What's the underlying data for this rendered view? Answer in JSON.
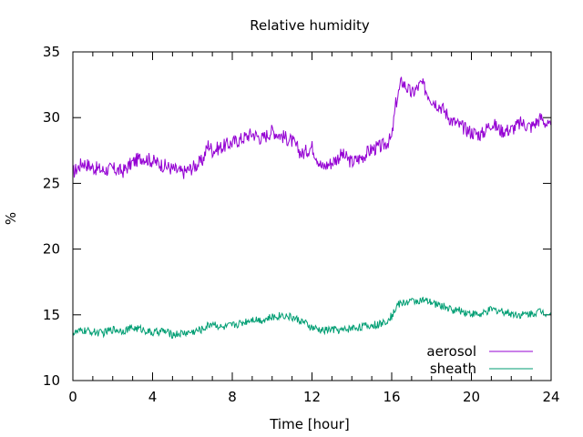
{
  "chart_data": {
    "type": "line",
    "title": "Relative humidity",
    "xlabel": "Time [hour]",
    "ylabel": "%",
    "xlim": [
      0,
      24
    ],
    "ylim": [
      10,
      35
    ],
    "x_ticks": [
      0,
      4,
      8,
      12,
      16,
      20,
      24
    ],
    "y_ticks": [
      10,
      15,
      20,
      25,
      30,
      35
    ],
    "grid": false,
    "legend_position": "bottom-right",
    "series": [
      {
        "name": "aerosol",
        "color": "#9400d3",
        "x": [
          0,
          0.5,
          1,
          1.5,
          2,
          2.5,
          3,
          3.5,
          4,
          4.5,
          5,
          5.5,
          6,
          6.5,
          6.8,
          7,
          7.5,
          8,
          8.5,
          9,
          9.5,
          10,
          10.5,
          11,
          11.5,
          12,
          12.5,
          13,
          13.5,
          14,
          14.5,
          15,
          15.5,
          16,
          16.2,
          16.5,
          17,
          17.5,
          18,
          18.5,
          19,
          19.5,
          20,
          20.5,
          21,
          21.5,
          22,
          22.5,
          23,
          23.5,
          24
        ],
        "values": [
          25.8,
          26.6,
          26.2,
          26.0,
          26.1,
          25.9,
          26.6,
          27.0,
          26.7,
          26.4,
          26.1,
          25.8,
          26.2,
          26.7,
          28.0,
          27.5,
          27.8,
          28.1,
          28.4,
          28.8,
          28.4,
          29.0,
          28.6,
          28.2,
          27.2,
          27.8,
          26.2,
          26.6,
          27.2,
          26.6,
          27.0,
          27.6,
          27.8,
          28.4,
          31.0,
          32.8,
          31.8,
          32.6,
          31.4,
          30.8,
          29.8,
          29.3,
          28.9,
          28.7,
          29.6,
          29.0,
          29.1,
          29.6,
          29.3,
          30.0,
          29.1
        ]
      },
      {
        "name": "sheath",
        "color": "#009e73",
        "x": [
          0,
          0.5,
          1,
          1.5,
          2,
          2.5,
          3,
          3.5,
          4,
          4.5,
          5,
          5.5,
          6,
          6.5,
          7,
          7.5,
          8,
          8.5,
          9,
          9.5,
          10,
          10.5,
          11,
          11.5,
          12,
          12.5,
          13,
          13.5,
          14,
          14.5,
          15,
          15.5,
          16,
          16.3,
          16.8,
          17.5,
          18,
          18.5,
          19,
          19.5,
          20,
          20.5,
          21,
          21.5,
          22,
          22.5,
          23,
          23.5,
          24
        ],
        "values": [
          13.6,
          13.8,
          13.7,
          13.6,
          13.9,
          13.8,
          14.0,
          13.9,
          13.6,
          13.8,
          13.5,
          13.6,
          13.7,
          13.9,
          14.4,
          14.0,
          14.2,
          14.4,
          14.7,
          14.6,
          14.8,
          15.0,
          14.8,
          14.5,
          14.0,
          13.8,
          13.9,
          13.8,
          14.0,
          14.1,
          14.2,
          14.3,
          14.9,
          15.8,
          16.0,
          16.1,
          15.9,
          15.7,
          15.4,
          15.3,
          15.1,
          15.0,
          15.4,
          15.3,
          15.1,
          15.0,
          15.1,
          15.3,
          15.0
        ]
      }
    ]
  }
}
